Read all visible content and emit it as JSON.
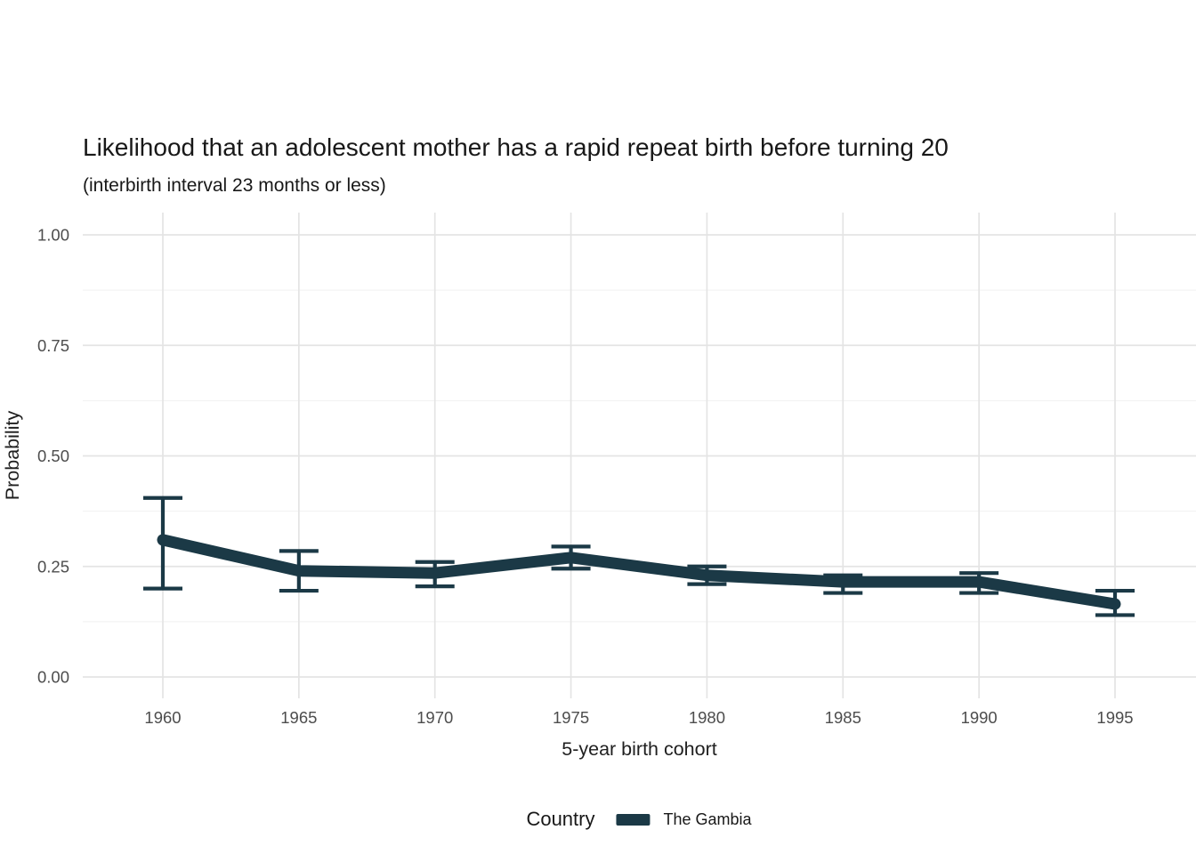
{
  "colors": {
    "accent": "#1b3946",
    "grid_major": "#e4e4e4",
    "grid_minor": "#f1f1f1",
    "tick_label": "#4d4d4d",
    "axis_title": "#1f1f1f",
    "background": "#ffffff"
  },
  "legend": {
    "title": "Country",
    "entries": [
      {
        "label": "The Gambia",
        "color": "#1b3946"
      }
    ]
  },
  "chart_data": {
    "type": "line",
    "title": "Likelihood that an adolescent mother has a rapid repeat birth before turning 20",
    "subtitle": "(interbirth interval 23 months or less)",
    "xlabel": "5-year birth cohort",
    "ylabel": "Probability",
    "x": [
      1960,
      1965,
      1970,
      1975,
      1980,
      1985,
      1990,
      1995
    ],
    "xtick_labels": [
      "1960",
      "1965",
      "1970",
      "1975",
      "1980",
      "1985",
      "1990",
      "1995"
    ],
    "ylim": [
      0,
      1
    ],
    "yticks": [
      0,
      0.25,
      0.5,
      0.75,
      1
    ],
    "ytick_labels": [
      "0.00",
      "0.25",
      "0.50",
      "0.75",
      "1.00"
    ],
    "minor_yticks": [
      0.125,
      0.375,
      0.625,
      0.875
    ],
    "grid": "horizontal major and minor gridlines, vertical gridlines at each cohort, no axis ticks",
    "legend_position": "bottom",
    "series": [
      {
        "name": "The Gambia",
        "color": "#1b3946",
        "values": [
          0.31,
          0.24,
          0.235,
          0.27,
          0.23,
          0.215,
          0.215,
          0.165
        ],
        "ci_lower": [
          0.2,
          0.195,
          0.205,
          0.245,
          0.21,
          0.19,
          0.19,
          0.14
        ],
        "ci_upper": [
          0.405,
          0.285,
          0.26,
          0.295,
          0.25,
          0.23,
          0.235,
          0.195
        ]
      }
    ]
  }
}
